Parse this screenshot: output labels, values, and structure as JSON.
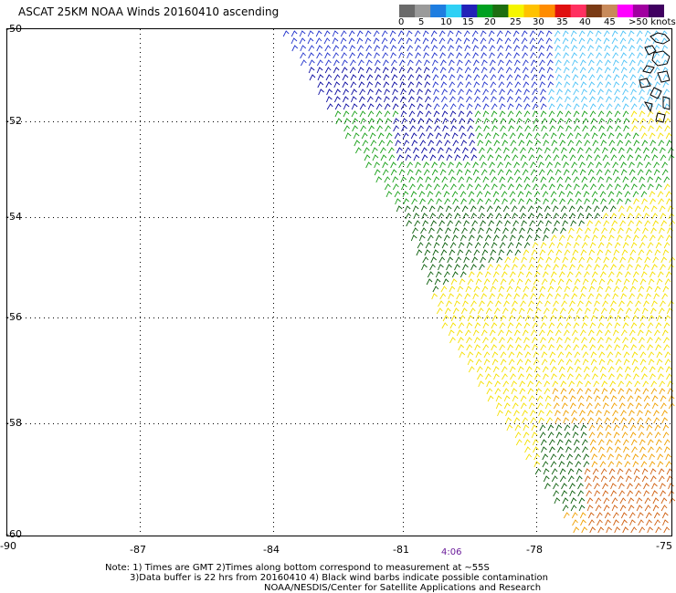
{
  "title": "ASCAT 25KM NOAA Winds 20160410 ascending",
  "legend": {
    "swatches": [
      "#6a6a6a",
      "#9a9a9a",
      "#1e7de0",
      "#2fd0f5",
      "#2222b8",
      "#00a020",
      "#1d6e10",
      "#f5f500",
      "#ffc200",
      "#ff8c00",
      "#e01010",
      "#ff3060",
      "#7a3a14",
      "#c88a5a",
      "#ff00ff",
      "#a000a0",
      "#400060"
    ],
    "labels": [
      "0",
      "5",
      "10",
      "15",
      "20",
      "25",
      "30",
      "35",
      "40",
      "45",
      ">50 knots"
    ]
  },
  "lat_labels": [
    "-50",
    "-52",
    "-54",
    "-56",
    "-58",
    "-60"
  ],
  "lon_labels": [
    "-90",
    "-87",
    "-84",
    "-81",
    "-78",
    "-75"
  ],
  "time_label": "4:06",
  "notes": {
    "line1": "Note: 1) Times are GMT 2)Times along bottom correspond to measurement at ~55S",
    "line2": "3)Data buffer is 22 hrs from 20160410 4) Black wind barbs indicate possible contamination",
    "line3": "NOAA/NESDIS/Center for Satellite Applications and Research"
  },
  "wind_colors": {
    "light_blue": "#4fc3f7",
    "blue": "#2233cc",
    "navy": "#0a0aa0",
    "green": "#18a018",
    "dark_green": "#0b5e0b",
    "yellow": "#f5e000",
    "orange": "#f0a000",
    "dark_orange": "#d06010",
    "contaminated": "#000000"
  }
}
